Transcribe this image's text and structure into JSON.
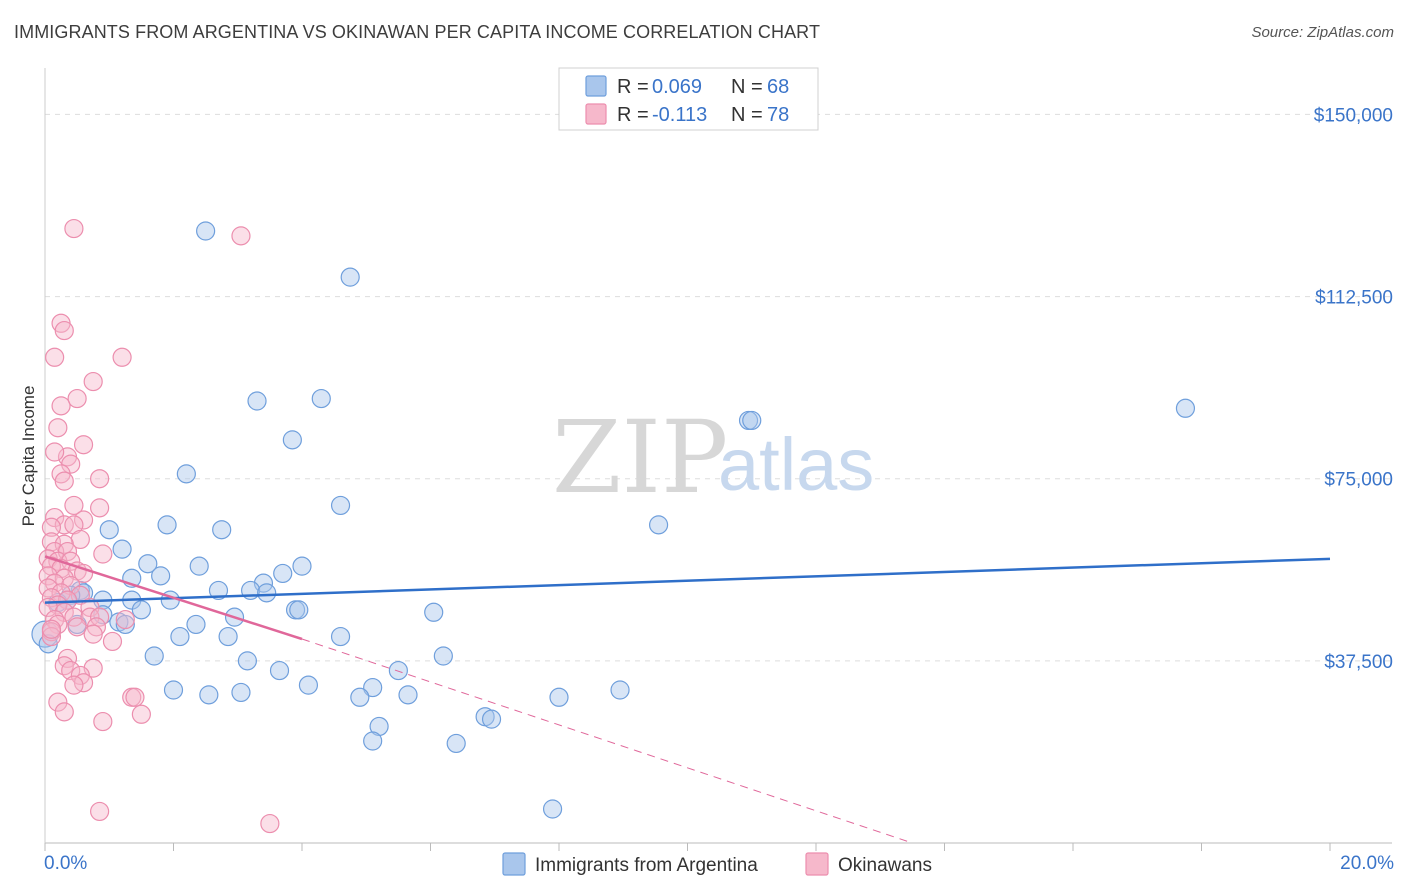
{
  "title": "IMMIGRANTS FROM ARGENTINA VS OKINAWAN PER CAPITA INCOME CORRELATION CHART",
  "source": "Source: ZipAtlas.com",
  "watermark": {
    "zip": "ZIP",
    "atlas": "atlas"
  },
  "legend": {
    "blue": {
      "r_label": "R =",
      "r_value": "0.069",
      "n_label": "N =",
      "n_value": "68"
    },
    "pink": {
      "r_label": "R =",
      "r_value": "-0.113",
      "n_label": "N =",
      "n_value": "78"
    }
  },
  "colors": {
    "blue_fill": "#a9c6ec",
    "blue_stroke": "#6f9fdc",
    "blue_line": "#2f6fc9",
    "pink_fill": "#f6b8cb",
    "pink_stroke": "#ec8eae",
    "pink_line": "#e0679a",
    "grid": "#dddddd",
    "axis_text": "#3a74c9"
  },
  "chart_data": {
    "type": "scatter",
    "title": "IMMIGRANTS FROM ARGENTINA VS OKINAWAN PER CAPITA INCOME CORRELATION CHART",
    "xlabel": "",
    "ylabel": "Per Capita Income",
    "xlim": [
      0,
      20
    ],
    "ylim": [
      0,
      157500
    ],
    "x_tick_labels": [
      "0.0%",
      "20.0%"
    ],
    "y_ticks": [
      37500,
      75000,
      112500,
      150000
    ],
    "y_tick_labels": [
      "$37,500",
      "$75,000",
      "$112,500",
      "$150,000"
    ],
    "series": [
      {
        "name": "Immigrants from Argentina",
        "color": "#6f9fdc",
        "points": [
          [
            2.5,
            126000
          ],
          [
            4.75,
            116500
          ],
          [
            3.3,
            91000
          ],
          [
            4.3,
            91500
          ],
          [
            3.85,
            83000
          ],
          [
            10.95,
            87000
          ],
          [
            11.0,
            87000
          ],
          [
            17.75,
            89500
          ],
          [
            2.2,
            76000
          ],
          [
            4.6,
            69500
          ],
          [
            9.55,
            65500
          ],
          [
            1.9,
            65500
          ],
          [
            2.75,
            64500
          ],
          [
            1.0,
            64500
          ],
          [
            1.2,
            60500
          ],
          [
            1.6,
            57500
          ],
          [
            2.4,
            57000
          ],
          [
            4.0,
            57000
          ],
          [
            3.7,
            55500
          ],
          [
            1.8,
            55000
          ],
          [
            1.35,
            54500
          ],
          [
            3.4,
            53500
          ],
          [
            0.55,
            52000
          ],
          [
            0.6,
            51500
          ],
          [
            2.7,
            52000
          ],
          [
            3.2,
            52000
          ],
          [
            3.45,
            51500
          ],
          [
            0.4,
            51000
          ],
          [
            0.35,
            50000
          ],
          [
            0.9,
            50000
          ],
          [
            1.35,
            50000
          ],
          [
            1.95,
            50000
          ],
          [
            0.2,
            49500
          ],
          [
            1.5,
            48000
          ],
          [
            3.9,
            48000
          ],
          [
            3.95,
            48000
          ],
          [
            6.05,
            47500
          ],
          [
            0.9,
            47000
          ],
          [
            2.95,
            46500
          ],
          [
            1.15,
            45500
          ],
          [
            1.25,
            45000
          ],
          [
            2.35,
            45000
          ],
          [
            0.5,
            45000
          ],
          [
            2.1,
            42500
          ],
          [
            2.85,
            42500
          ],
          [
            4.6,
            42500
          ],
          [
            1.7,
            38500
          ],
          [
            3.15,
            37500
          ],
          [
            6.2,
            38500
          ],
          [
            5.5,
            35500
          ],
          [
            3.65,
            35500
          ],
          [
            4.1,
            32500
          ],
          [
            2.0,
            31500
          ],
          [
            2.55,
            30500
          ],
          [
            3.05,
            31000
          ],
          [
            5.1,
            32000
          ],
          [
            8.95,
            31500
          ],
          [
            4.9,
            30000
          ],
          [
            5.65,
            30500
          ],
          [
            8.0,
            30000
          ],
          [
            6.85,
            26000
          ],
          [
            6.95,
            25500
          ],
          [
            5.2,
            24000
          ],
          [
            5.1,
            21000
          ],
          [
            6.4,
            20500
          ],
          [
            7.9,
            7000
          ],
          [
            0.0,
            43000
          ],
          [
            0.05,
            41000
          ]
        ]
      },
      {
        "name": "Okinawans",
        "color": "#ec8eae",
        "points": [
          [
            0.45,
            126500
          ],
          [
            3.05,
            125000
          ],
          [
            0.25,
            107000
          ],
          [
            0.3,
            105500
          ],
          [
            0.15,
            100000
          ],
          [
            1.2,
            100000
          ],
          [
            0.75,
            95000
          ],
          [
            0.5,
            91500
          ],
          [
            0.25,
            90000
          ],
          [
            0.2,
            85500
          ],
          [
            0.6,
            82000
          ],
          [
            0.35,
            79500
          ],
          [
            0.4,
            78000
          ],
          [
            0.15,
            80500
          ],
          [
            0.25,
            76000
          ],
          [
            0.85,
            75000
          ],
          [
            0.3,
            74500
          ],
          [
            0.45,
            69500
          ],
          [
            0.85,
            69000
          ],
          [
            0.15,
            67000
          ],
          [
            0.6,
            66500
          ],
          [
            0.3,
            65500
          ],
          [
            0.1,
            65000
          ],
          [
            0.45,
            65500
          ],
          [
            0.1,
            62000
          ],
          [
            0.55,
            62500
          ],
          [
            0.3,
            61500
          ],
          [
            0.15,
            60000
          ],
          [
            0.35,
            60000
          ],
          [
            0.9,
            59500
          ],
          [
            0.05,
            58500
          ],
          [
            0.2,
            58000
          ],
          [
            0.4,
            58000
          ],
          [
            0.1,
            57000
          ],
          [
            0.25,
            56500
          ],
          [
            0.5,
            56000
          ],
          [
            0.6,
            55500
          ],
          [
            0.05,
            55000
          ],
          [
            0.3,
            54500
          ],
          [
            0.15,
            53500
          ],
          [
            0.4,
            53000
          ],
          [
            0.05,
            52500
          ],
          [
            0.25,
            51500
          ],
          [
            0.55,
            51000
          ],
          [
            0.1,
            50500
          ],
          [
            0.35,
            50000
          ],
          [
            0.2,
            49000
          ],
          [
            0.7,
            48500
          ],
          [
            0.05,
            48500
          ],
          [
            0.3,
            47500
          ],
          [
            0.45,
            46500
          ],
          [
            0.15,
            46000
          ],
          [
            0.7,
            46500
          ],
          [
            0.85,
            46500
          ],
          [
            1.25,
            46000
          ],
          [
            0.2,
            45000
          ],
          [
            0.5,
            44500
          ],
          [
            0.8,
            44500
          ],
          [
            0.1,
            43500
          ],
          [
            0.75,
            43000
          ],
          [
            1.05,
            41500
          ],
          [
            0.1,
            42500
          ],
          [
            0.35,
            38000
          ],
          [
            0.3,
            36500
          ],
          [
            0.75,
            36000
          ],
          [
            0.4,
            35500
          ],
          [
            0.55,
            34500
          ],
          [
            0.6,
            33000
          ],
          [
            0.45,
            32500
          ],
          [
            1.35,
            30000
          ],
          [
            1.4,
            30000
          ],
          [
            0.2,
            29000
          ],
          [
            0.3,
            27000
          ],
          [
            1.5,
            26500
          ],
          [
            0.9,
            25000
          ],
          [
            0.85,
            6500
          ],
          [
            3.5,
            4000
          ],
          [
            0.1,
            44000
          ]
        ]
      }
    ],
    "trendlines": [
      {
        "series": "Immigrants from Argentina",
        "x": [
          0,
          20
        ],
        "y": [
          49500,
          58500
        ],
        "style": "solid"
      },
      {
        "series": "Okinawans",
        "x": [
          0,
          4
        ],
        "y": [
          59000,
          42000
        ],
        "style": "solid"
      },
      {
        "series": "Okinawans",
        "x": [
          4,
          13.5
        ],
        "y": [
          42000,
          0
        ],
        "style": "dashed"
      }
    ],
    "legend": [
      "Immigrants from Argentina",
      "Okinawans"
    ],
    "grid": true
  }
}
